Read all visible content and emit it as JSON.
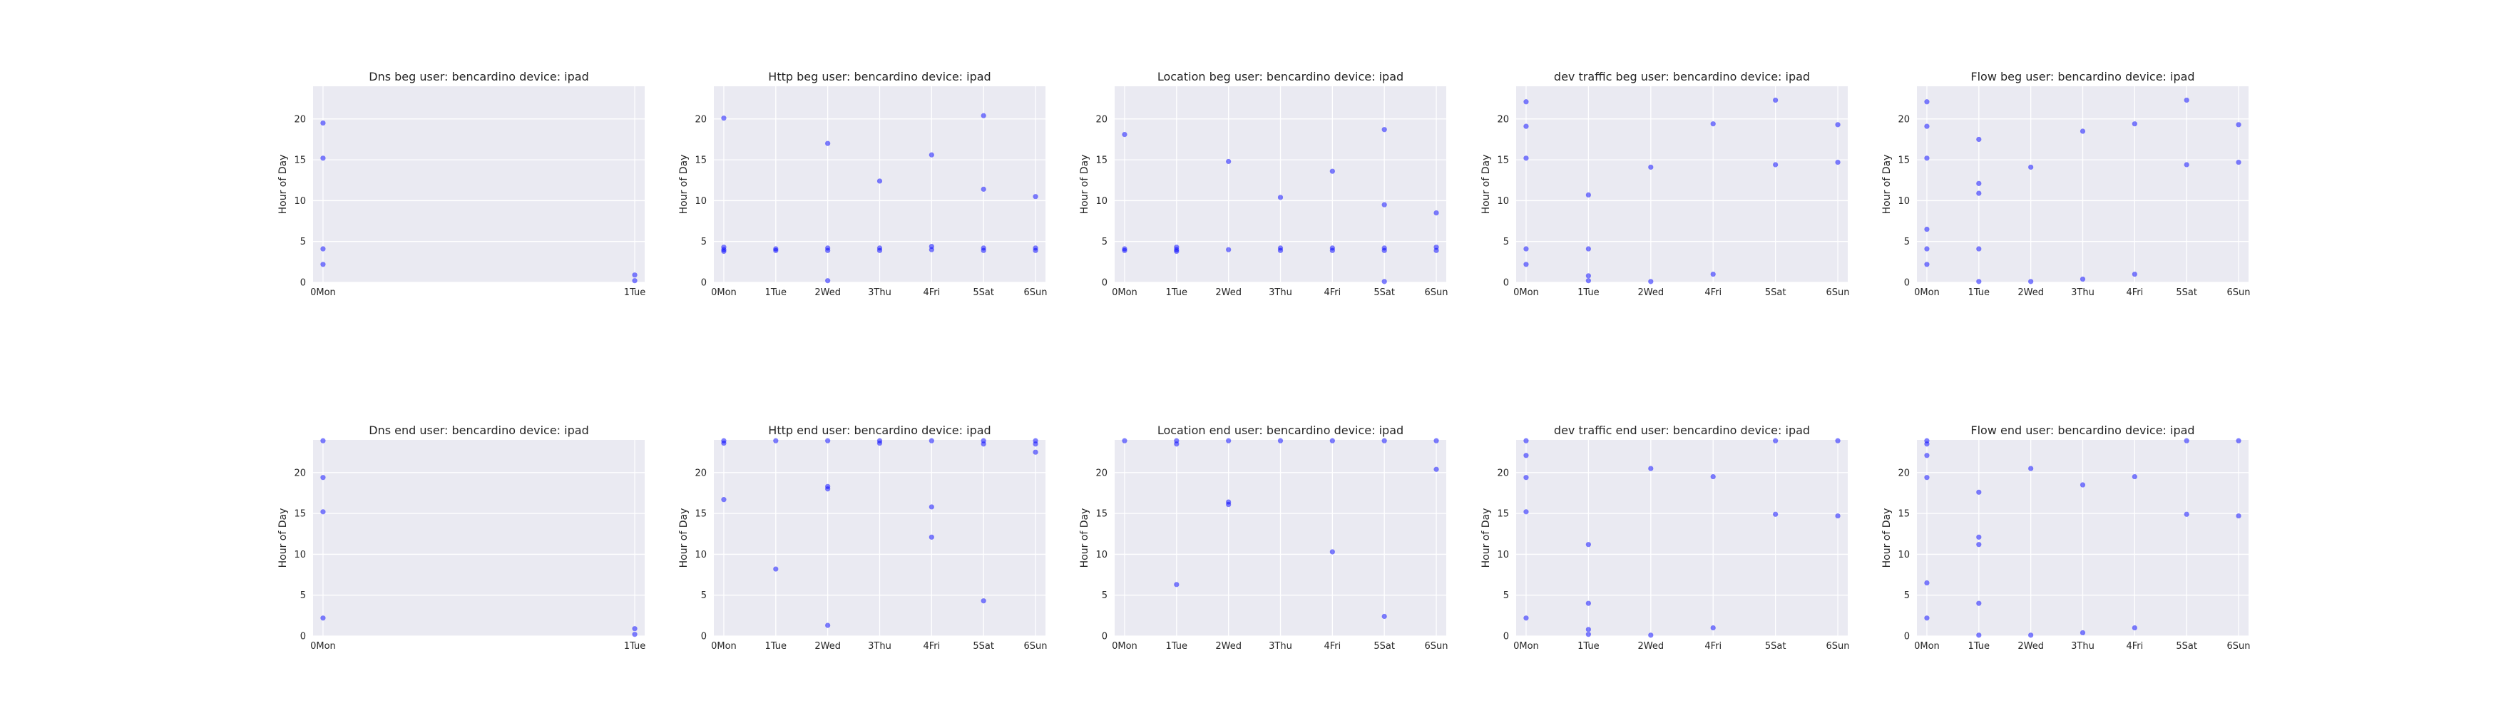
{
  "figure": {
    "background": "#ffffff",
    "axes_bg": "#eaeaf2",
    "grid_color": "#ffffff",
    "point_color": "#0000ff"
  },
  "chart_data": [
    {
      "type": "scatter",
      "title": "Dns beg user: bencardino device: ipad",
      "xlabel": "",
      "ylabel": "Hour of Day",
      "categories": [
        "0Mon",
        "1Tue"
      ],
      "x": [
        0,
        1
      ],
      "ylim": [
        0,
        24
      ],
      "yticks": [
        0,
        5,
        10,
        15,
        20
      ],
      "grid": true,
      "points": [
        [
          0,
          19.5
        ],
        [
          0,
          15.2
        ],
        [
          0,
          4.1
        ],
        [
          0,
          2.2
        ],
        [
          1,
          0.9
        ],
        [
          1,
          0.2
        ]
      ]
    },
    {
      "type": "scatter",
      "title": "Http beg user: bencardino device: ipad",
      "xlabel": "",
      "ylabel": "Hour of Day",
      "categories": [
        "0Mon",
        "1Tue",
        "2Wed",
        "3Thu",
        "4Fri",
        "5Sat",
        "6Sun"
      ],
      "x": [
        0,
        1,
        2,
        3,
        4,
        5,
        6
      ],
      "ylim": [
        0,
        24
      ],
      "yticks": [
        0,
        5,
        10,
        15,
        20
      ],
      "grid": true,
      "points": [
        [
          0,
          20.1
        ],
        [
          0,
          4.3
        ],
        [
          0,
          4.0
        ],
        [
          0,
          3.8
        ],
        [
          1,
          4.1
        ],
        [
          1,
          3.9
        ],
        [
          2,
          17.0
        ],
        [
          2,
          4.2
        ],
        [
          2,
          3.9
        ],
        [
          2,
          0.2
        ],
        [
          3,
          12.4
        ],
        [
          3,
          4.2
        ],
        [
          3,
          3.9
        ],
        [
          4,
          15.6
        ],
        [
          4,
          4.4
        ],
        [
          4,
          4.0
        ],
        [
          5,
          20.4
        ],
        [
          5,
          11.4
        ],
        [
          5,
          4.2
        ],
        [
          5,
          3.9
        ],
        [
          6,
          10.5
        ],
        [
          6,
          4.2
        ],
        [
          6,
          3.9
        ]
      ]
    },
    {
      "type": "scatter",
      "title": "Location beg user: bencardino device: ipad",
      "xlabel": "",
      "ylabel": "Hour of Day",
      "categories": [
        "0Mon",
        "1Tue",
        "2Wed",
        "3Thu",
        "4Fri",
        "5Sat",
        "6Sun"
      ],
      "x": [
        0,
        1,
        2,
        3,
        4,
        5,
        6
      ],
      "ylim": [
        0,
        24
      ],
      "yticks": [
        0,
        5,
        10,
        15,
        20
      ],
      "grid": true,
      "points": [
        [
          0,
          18.1
        ],
        [
          0,
          4.1
        ],
        [
          0,
          3.9
        ],
        [
          1,
          4.3
        ],
        [
          1,
          4.0
        ],
        [
          1,
          3.8
        ],
        [
          2,
          14.8
        ],
        [
          2,
          4.0
        ],
        [
          3,
          10.4
        ],
        [
          3,
          4.2
        ],
        [
          3,
          3.9
        ],
        [
          4,
          13.6
        ],
        [
          4,
          4.2
        ],
        [
          4,
          3.9
        ],
        [
          5,
          18.7
        ],
        [
          5,
          9.5
        ],
        [
          5,
          4.2
        ],
        [
          5,
          3.9
        ],
        [
          5,
          0.1
        ],
        [
          6,
          8.5
        ],
        [
          6,
          4.3
        ],
        [
          6,
          3.9
        ]
      ]
    },
    {
      "type": "scatter",
      "title": "dev traffic beg user: bencardino device: ipad",
      "xlabel": "",
      "ylabel": "Hour of Day",
      "categories": [
        "0Mon",
        "1Tue",
        "2Wed",
        "4Fri",
        "5Sat",
        "6Sun"
      ],
      "x": [
        0,
        1,
        2,
        3,
        4,
        5
      ],
      "ylim": [
        0,
        24
      ],
      "yticks": [
        0,
        5,
        10,
        15,
        20
      ],
      "grid": true,
      "points": [
        [
          0,
          22.1
        ],
        [
          0,
          19.1
        ],
        [
          0,
          15.2
        ],
        [
          0,
          4.1
        ],
        [
          0,
          2.2
        ],
        [
          1,
          10.7
        ],
        [
          1,
          4.1
        ],
        [
          1,
          0.8
        ],
        [
          1,
          0.2
        ],
        [
          2,
          14.1
        ],
        [
          2,
          0.1
        ],
        [
          3,
          19.4
        ],
        [
          3,
          1.0
        ],
        [
          4,
          22.3
        ],
        [
          4,
          14.4
        ],
        [
          5,
          19.3
        ],
        [
          5,
          14.7
        ]
      ]
    },
    {
      "type": "scatter",
      "title": "Flow beg user: bencardino device: ipad",
      "xlabel": "",
      "ylabel": "Hour of Day",
      "categories": [
        "0Mon",
        "1Tue",
        "2Wed",
        "3Thu",
        "4Fri",
        "5Sat",
        "6Sun"
      ],
      "x": [
        0,
        1,
        2,
        3,
        4,
        5,
        6
      ],
      "ylim": [
        0,
        24
      ],
      "yticks": [
        0,
        5,
        10,
        15,
        20
      ],
      "grid": true,
      "points": [
        [
          0,
          22.1
        ],
        [
          0,
          19.1
        ],
        [
          0,
          15.2
        ],
        [
          0,
          6.5
        ],
        [
          0,
          4.1
        ],
        [
          0,
          2.2
        ],
        [
          1,
          17.5
        ],
        [
          1,
          12.1
        ],
        [
          1,
          10.9
        ],
        [
          1,
          4.1
        ],
        [
          1,
          0.1
        ],
        [
          2,
          14.1
        ],
        [
          2,
          0.1
        ],
        [
          3,
          18.5
        ],
        [
          3,
          0.4
        ],
        [
          4,
          19.4
        ],
        [
          4,
          1.0
        ],
        [
          5,
          22.3
        ],
        [
          5,
          14.4
        ],
        [
          6,
          19.3
        ],
        [
          6,
          14.7
        ]
      ]
    },
    {
      "type": "scatter",
      "title": "Dns end user: bencardino device: ipad",
      "xlabel": "",
      "ylabel": "Hour of Day",
      "categories": [
        "0Mon",
        "1Tue"
      ],
      "x": [
        0,
        1
      ],
      "ylim": [
        0,
        24
      ],
      "yticks": [
        0,
        5,
        10,
        15,
        20
      ],
      "grid": true,
      "points": [
        [
          0,
          23.9
        ],
        [
          0,
          19.4
        ],
        [
          0,
          15.2
        ],
        [
          0,
          2.2
        ],
        [
          1,
          0.9
        ],
        [
          1,
          0.2
        ]
      ]
    },
    {
      "type": "scatter",
      "title": "Http end user: bencardino device: ipad",
      "xlabel": "",
      "ylabel": "Hour of Day",
      "categories": [
        "0Mon",
        "1Tue",
        "2Wed",
        "3Thu",
        "4Fri",
        "5Sat",
        "6Sun"
      ],
      "x": [
        0,
        1,
        2,
        3,
        4,
        5,
        6
      ],
      "ylim": [
        0,
        24
      ],
      "yticks": [
        0,
        5,
        10,
        15,
        20
      ],
      "grid": true,
      "points": [
        [
          0,
          23.9
        ],
        [
          0,
          23.6
        ],
        [
          0,
          16.7
        ],
        [
          1,
          23.9
        ],
        [
          1,
          8.2
        ],
        [
          2,
          23.9
        ],
        [
          2,
          18.3
        ],
        [
          2,
          18.0
        ],
        [
          2,
          1.3
        ],
        [
          3,
          23.9
        ],
        [
          3,
          23.6
        ],
        [
          4,
          23.9
        ],
        [
          4,
          15.8
        ],
        [
          4,
          12.1
        ],
        [
          5,
          23.9
        ],
        [
          5,
          23.5
        ],
        [
          5,
          4.3
        ],
        [
          6,
          23.9
        ],
        [
          6,
          23.5
        ],
        [
          6,
          22.5
        ]
      ]
    },
    {
      "type": "scatter",
      "title": "Location end user: bencardino device: ipad",
      "xlabel": "",
      "ylabel": "Hour of Day",
      "categories": [
        "0Mon",
        "1Tue",
        "2Wed",
        "3Thu",
        "4Fri",
        "5Sat",
        "6Sun"
      ],
      "x": [
        0,
        1,
        2,
        3,
        4,
        5,
        6
      ],
      "ylim": [
        0,
        24
      ],
      "yticks": [
        0,
        5,
        10,
        15,
        20
      ],
      "grid": true,
      "points": [
        [
          0,
          23.9
        ],
        [
          1,
          23.9
        ],
        [
          1,
          23.5
        ],
        [
          1,
          6.3
        ],
        [
          2,
          23.9
        ],
        [
          2,
          16.4
        ],
        [
          2,
          16.1
        ],
        [
          3,
          23.9
        ],
        [
          4,
          23.9
        ],
        [
          4,
          10.3
        ],
        [
          5,
          23.9
        ],
        [
          5,
          2.4
        ],
        [
          6,
          23.9
        ],
        [
          6,
          20.4
        ]
      ]
    },
    {
      "type": "scatter",
      "title": "dev traffic end user: bencardino device: ipad",
      "xlabel": "",
      "ylabel": "Hour of Day",
      "categories": [
        "0Mon",
        "1Tue",
        "2Wed",
        "4Fri",
        "5Sat",
        "6Sun"
      ],
      "x": [
        0,
        1,
        2,
        3,
        4,
        5
      ],
      "ylim": [
        0,
        24
      ],
      "yticks": [
        0,
        5,
        10,
        15,
        20
      ],
      "grid": true,
      "points": [
        [
          0,
          23.9
        ],
        [
          0,
          22.1
        ],
        [
          0,
          19.4
        ],
        [
          0,
          15.2
        ],
        [
          0,
          2.2
        ],
        [
          1,
          11.2
        ],
        [
          1,
          4.0
        ],
        [
          1,
          0.8
        ],
        [
          1,
          0.2
        ],
        [
          2,
          20.5
        ],
        [
          2,
          0.1
        ],
        [
          3,
          19.5
        ],
        [
          3,
          1.0
        ],
        [
          4,
          23.9
        ],
        [
          4,
          14.9
        ],
        [
          5,
          23.9
        ],
        [
          5,
          14.7
        ]
      ]
    },
    {
      "type": "scatter",
      "title": "Flow end user: bencardino device: ipad",
      "xlabel": "",
      "ylabel": "Hour of Day",
      "categories": [
        "0Mon",
        "1Tue",
        "2Wed",
        "3Thu",
        "4Fri",
        "5Sat",
        "6Sun"
      ],
      "x": [
        0,
        1,
        2,
        3,
        4,
        5,
        6
      ],
      "ylim": [
        0,
        24
      ],
      "yticks": [
        0,
        5,
        10,
        15,
        20
      ],
      "grid": true,
      "points": [
        [
          0,
          23.9
        ],
        [
          0,
          23.5
        ],
        [
          0,
          22.1
        ],
        [
          0,
          19.4
        ],
        [
          0,
          6.5
        ],
        [
          0,
          2.2
        ],
        [
          1,
          17.6
        ],
        [
          1,
          12.1
        ],
        [
          1,
          11.2
        ],
        [
          1,
          4.0
        ],
        [
          1,
          0.1
        ],
        [
          2,
          20.5
        ],
        [
          2,
          0.1
        ],
        [
          3,
          18.5
        ],
        [
          3,
          0.4
        ],
        [
          4,
          19.5
        ],
        [
          4,
          1.0
        ],
        [
          5,
          23.9
        ],
        [
          5,
          14.9
        ],
        [
          6,
          23.9
        ],
        [
          6,
          14.7
        ]
      ]
    }
  ]
}
